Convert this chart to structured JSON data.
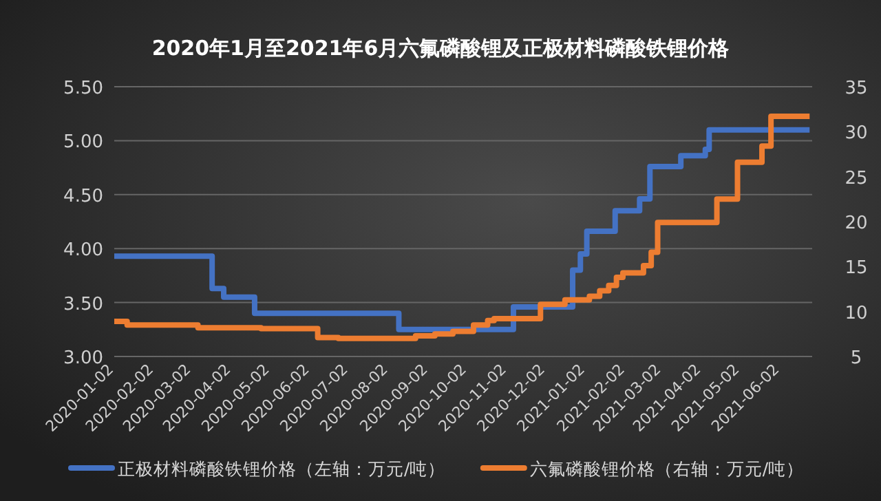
{
  "chart_data": {
    "type": "step",
    "title": "2020年1月至2021年6月六氟磷酸锂及正极材料磷酸铁锂价格",
    "x": [
      "2020-01-02",
      "2020-03-18",
      "2020-03-27",
      "2020-04-20",
      "2020-08-10",
      "2020-11-07",
      "2020-12-23",
      "2020-12-29",
      "2021-01-03",
      "2021-01-25",
      "2021-02-13",
      "2021-02-21",
      "2021-03-17",
      "2021-04-05",
      "2021-04-08",
      "2021-06-25"
    ],
    "series": [
      {
        "name": "正极材料磷酸铁锂价格（左轴：万元/吨）",
        "color": "#4472c4",
        "values": [
          3.93,
          3.63,
          3.55,
          3.4,
          3.25,
          3.46,
          3.8,
          3.95,
          4.16,
          4.35,
          4.46,
          4.76,
          4.86,
          4.92,
          5.1,
          5.1
        ]
      },
      {
        "name": "六氟磷酸锂价格（右轴：万元/吨）",
        "color": "#ed7d31",
        "axis": "y2",
        "x": [
          "2020-01-02",
          "2020-01-12",
          "2020-03-07",
          "2020-04-25",
          "2020-06-08",
          "2020-06-24",
          "2020-08-23",
          "2020-09-07",
          "2020-09-21",
          "2020-10-07",
          "2020-10-18",
          "2020-10-23",
          "2020-11-28",
          "2020-12-17",
          "2021-01-05",
          "2021-01-13",
          "2021-01-20",
          "2021-01-26",
          "2021-01-31",
          "2021-02-16",
          "2021-02-22",
          "2021-02-27",
          "2021-04-14",
          "2021-04-30",
          "2021-05-19",
          "2021-05-26",
          "2021-06-25"
        ],
        "values": [
          8.9,
          8.5,
          8.2,
          8.1,
          7.1,
          7.0,
          7.3,
          7.5,
          7.8,
          8.5,
          9.0,
          9.2,
          10.8,
          11.3,
          11.7,
          12.3,
          12.9,
          13.8,
          14.3,
          15.1,
          16.6,
          19.9,
          22.5,
          26.6,
          28.4,
          31.7,
          31.7
        ]
      }
    ],
    "xlim": [
      "2020-01-02",
      "2021-06-27"
    ],
    "xticks": [
      {
        "value": "2020-01-02",
        "label": "2020-01-02"
      },
      {
        "value": "2020-02-02",
        "label": "2020-02-02"
      },
      {
        "value": "2020-03-02",
        "label": "2020-03-02"
      },
      {
        "value": "2020-04-02",
        "label": "2020-04-02"
      },
      {
        "value": "2020-05-02",
        "label": "2020-05-02"
      },
      {
        "value": "2020-06-02",
        "label": "2020-06-02"
      },
      {
        "value": "2020-07-02",
        "label": "2020-07-02"
      },
      {
        "value": "2020-08-02",
        "label": "2020-08-02"
      },
      {
        "value": "2020-09-02",
        "label": "2020-09-02"
      },
      {
        "value": "2020-10-02",
        "label": "2020-10-02"
      },
      {
        "value": "2020-11-02",
        "label": "2020-11-02"
      },
      {
        "value": "2020-12-02",
        "label": "2020-12-02"
      },
      {
        "value": "2021-01-02",
        "label": "2021-01-02"
      },
      {
        "value": "2021-02-02",
        "label": "2021-02-02"
      },
      {
        "value": "2021-03-02",
        "label": "2021-03-02"
      },
      {
        "value": "2021-04-02",
        "label": "2021-04-02"
      },
      {
        "value": "2021-05-02",
        "label": "2021-05-02"
      },
      {
        "value": "2021-06-02",
        "label": "2021-06-02"
      }
    ],
    "ylim": [
      3.0,
      5.5
    ],
    "yticks": [
      {
        "value": 3.0,
        "label": "3.00"
      },
      {
        "value": 3.5,
        "label": "3.50"
      },
      {
        "value": 4.0,
        "label": "4.00"
      },
      {
        "value": 4.5,
        "label": "4.50"
      },
      {
        "value": 5.0,
        "label": "5.00"
      },
      {
        "value": 5.5,
        "label": "5.50"
      }
    ],
    "y2lim": [
      5,
      35
    ],
    "y2ticks": [
      5,
      10,
      15,
      20,
      25,
      30,
      35
    ],
    "grid": "y",
    "legend": "bottom",
    "line_style": "solid",
    "marker": "none"
  }
}
